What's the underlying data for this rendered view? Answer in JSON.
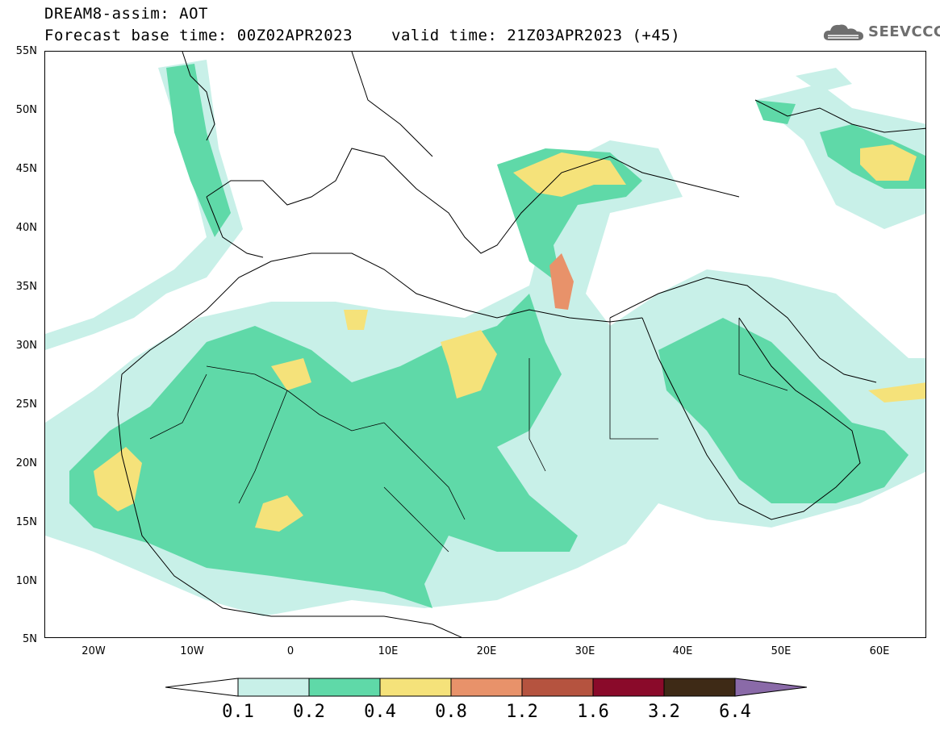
{
  "header": {
    "title": "DREAM8-assim: AOT",
    "base_time": "Forecast base time: 00Z02APR2023",
    "valid_time": "valid time: 21Z03APR2023 (+45)"
  },
  "logo": {
    "text": "SEEVCCC",
    "icon": "cloud-icon"
  },
  "axes": {
    "lat_labels": [
      "55N",
      "50N",
      "45N",
      "40N",
      "35N",
      "30N",
      "25N",
      "20N",
      "15N",
      "10N",
      "5N"
    ],
    "lon_labels": [
      "20W",
      "10W",
      "0",
      "10E",
      "20E",
      "30E",
      "40E",
      "50E",
      "60E"
    ]
  },
  "legend": {
    "levels": [
      "0.1",
      "0.2",
      "0.4",
      "0.8",
      "1.2",
      "1.6",
      "3.2",
      "6.4"
    ],
    "colors": [
      "#ffffff",
      "#c8f0e8",
      "#5fd9a8",
      "#f5e27a",
      "#e8926a",
      "#b5533f",
      "#8a0a2a",
      "#3e2a16",
      "#8a6aa8"
    ]
  },
  "colors": {
    "aot_0_1": "#c8f0e8",
    "aot_0_2": "#5fd9a8",
    "aot_0_4": "#f5e27a",
    "aot_0_8": "#e8926a"
  }
}
